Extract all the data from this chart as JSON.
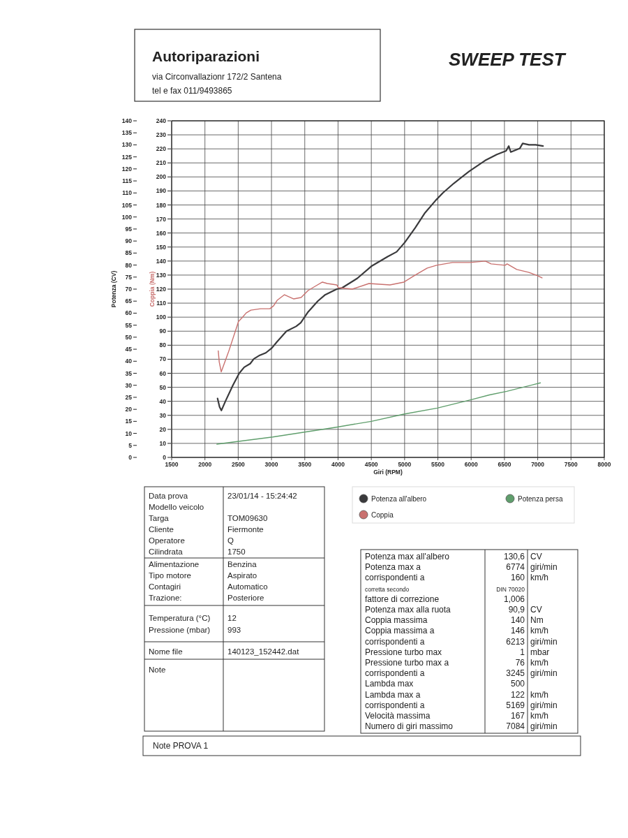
{
  "chart_data": {
    "type": "line",
    "title": "SWEEP TEST",
    "xlabel": "Giri (RPM)",
    "ylabel": "Coppia (Nm)",
    "y2label": "Potenza (CV)",
    "xlim": [
      1500,
      8000
    ],
    "xticks": [
      1500,
      2000,
      2500,
      3000,
      3500,
      4000,
      4500,
      5000,
      5500,
      6000,
      6500,
      7000,
      7500,
      8000
    ],
    "ylim": [
      0,
      240
    ],
    "yticks": [
      0,
      10,
      20,
      30,
      40,
      50,
      60,
      70,
      80,
      90,
      100,
      110,
      120,
      130,
      140,
      150,
      160,
      170,
      180,
      190,
      200,
      210,
      220,
      230,
      240
    ],
    "y2lim": [
      0,
      140
    ],
    "y2ticks": [
      0,
      5,
      10,
      15,
      20,
      25,
      30,
      35,
      40,
      45,
      50,
      55,
      60,
      65,
      70,
      75,
      80,
      85,
      90,
      95,
      100,
      105,
      110,
      115,
      120,
      125,
      130,
      135,
      140
    ],
    "grid": true,
    "legend": "bottom",
    "series": [
      {
        "name": "Potenza all'albero",
        "color": "#3a3a3c",
        "axis": "y2",
        "x": [
          2190,
          2220,
          2247,
          2310,
          2420,
          2515,
          2590,
          2680,
          2735,
          2825,
          2915,
          3005,
          3080,
          3225,
          3370,
          3440,
          3550,
          3695,
          3800,
          3980,
          4060,
          4290,
          4500,
          4745,
          4880,
          5005,
          5160,
          5300,
          5470,
          5575,
          5740,
          5970,
          6210,
          6385,
          6525,
          6565,
          6595,
          6730,
          6774,
          6870,
          6970,
          7080
        ],
        "values": [
          24.5,
          21,
          19.5,
          23.5,
          30,
          35,
          37.5,
          39,
          41,
          42.5,
          43.5,
          45.5,
          48,
          52.5,
          54.5,
          56,
          60.5,
          65,
          67.5,
          70,
          70.5,
          74.5,
          79.5,
          83.5,
          85.5,
          89.5,
          95.5,
          101.5,
          107,
          110,
          114,
          119,
          123.5,
          126,
          127.5,
          129.5,
          127,
          128.5,
          130.6,
          130,
          130,
          129.5
        ]
      },
      {
        "name": "Coppia",
        "color": "#c9716f",
        "x": [
          2200,
          2215,
          2245,
          2360,
          2505,
          2565,
          2620,
          2690,
          2835,
          2975,
          3030,
          3085,
          3195,
          3335,
          3445,
          3550,
          3655,
          3765,
          3840,
          3980,
          4005,
          4215,
          4465,
          4780,
          4990,
          5160,
          5340,
          5480,
          5720,
          5985,
          6213,
          6300,
          6510,
          6540,
          6685,
          6860,
          6975,
          7065
        ],
        "values": [
          76,
          68,
          61,
          76,
          97,
          100,
          103,
          105,
          106,
          106,
          108,
          112,
          116,
          113,
          114,
          119,
          122,
          125,
          124,
          123,
          121,
          120,
          124,
          123,
          125,
          130,
          135,
          137,
          139,
          139,
          140,
          138,
          137,
          138,
          134,
          132,
          130,
          128
        ]
      },
      {
        "name": "Potenza persa",
        "color": "#5f9e6c",
        "axis": "y2",
        "x": [
          2180,
          3020,
          3960,
          4500,
          4990,
          5490,
          6000,
          6275,
          6535,
          7040
        ],
        "values": [
          5.5,
          8.5,
          12.5,
          15,
          18,
          20.5,
          24,
          26,
          27.5,
          31
        ]
      }
    ],
    "annotations": [
      "Autoriparazioni",
      "via Circonvallazionr 172/2 Santena",
      "tel e fax 011/9493865",
      "Data prova",
      "23/01/14 - 15:24:42",
      "Modello veicolo",
      "Targa",
      "TOM09630",
      "Cliente",
      "Fiermonte",
      "Operatore",
      "Q",
      "Cilindrata",
      "1750",
      "Alimentazione",
      "Benzina",
      "Tipo motore",
      "Aspirato",
      "Contagiri",
      "Automatico",
      "Trazione:",
      "Posteriore",
      "Temperatura (°C)",
      "12",
      "Pressione (mbar)",
      "993",
      "Nome file",
      "140123_152442.dat",
      "Note",
      "Potenza max all'albero",
      "130,6",
      "CV",
      "Potenza max a",
      "6774",
      "giri/min",
      "corrispondenti a",
      "160",
      "km/h",
      "corretta secondo",
      "DIN 70020",
      "fattore di correzione",
      "1,006",
      "Potenza max alla ruota",
      "90,9",
      "CV",
      "Coppia massima",
      "140",
      "Nm",
      "Coppia massima a",
      "146",
      "km/h",
      "corrispondenti a",
      "6213",
      "giri/min",
      "Pressione turbo max",
      "1",
      "mbar",
      "Pressione turbo max a",
      "76",
      "km/h",
      "corrispondenti a",
      "3245",
      "giri/min",
      "Lambda max",
      "500",
      "Lambda max a",
      "122",
      "km/h",
      "corrispondenti a",
      "5169",
      "giri/min",
      "Velocità massima",
      "167",
      "km/h",
      "Numero di giri massimo",
      "7084",
      "giri/min",
      "Note PROVA 1"
    ]
  }
}
